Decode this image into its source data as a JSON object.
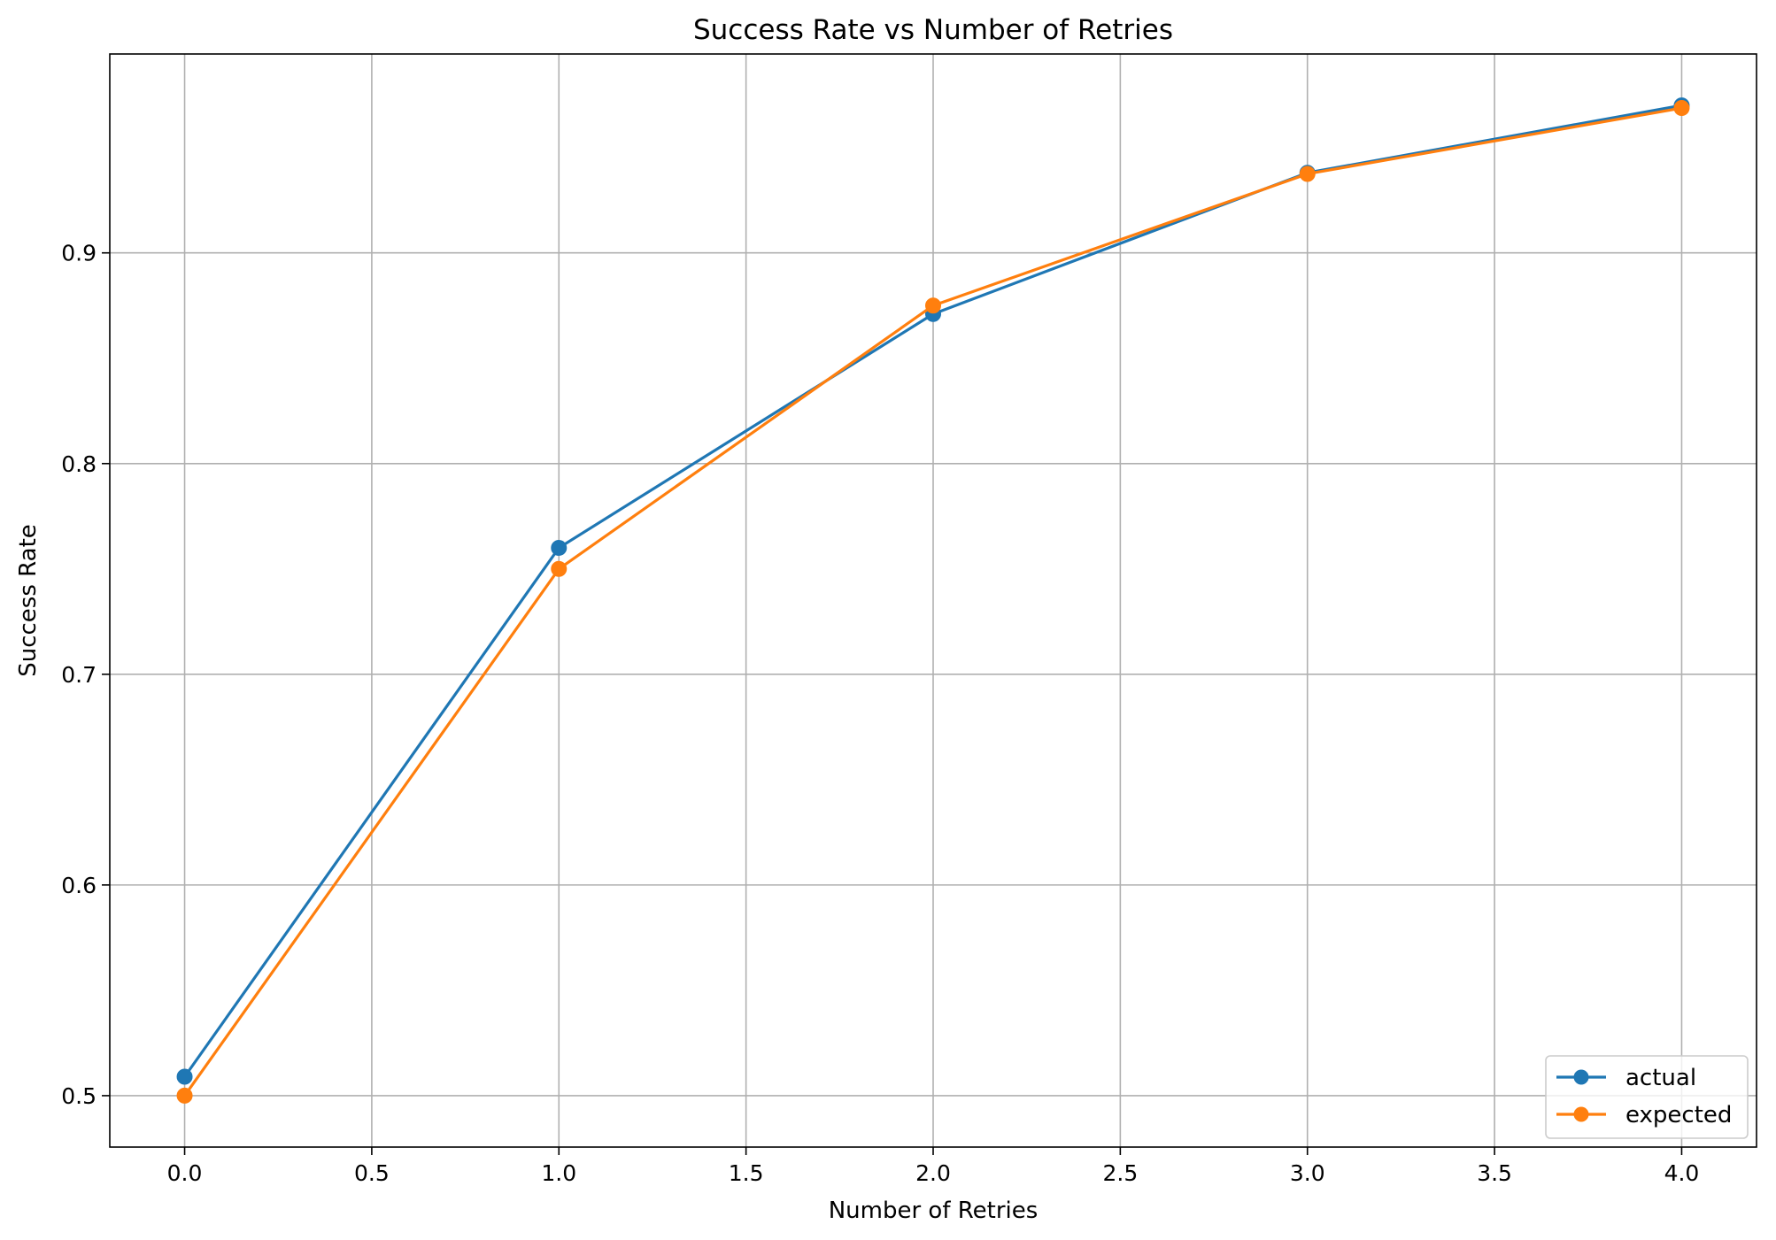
{
  "chart_data": {
    "type": "line",
    "title": "Success Rate vs Number of Retries",
    "xlabel": "Number of Retries",
    "ylabel": "Success Rate",
    "xlim": [
      -0.2,
      4.2
    ],
    "ylim": [
      0.4756,
      0.9944
    ],
    "xticks": [
      0.0,
      0.5,
      1.0,
      1.5,
      2.0,
      2.5,
      3.0,
      3.5,
      4.0
    ],
    "xtick_labels": [
      "0.0",
      "0.5",
      "1.0",
      "1.5",
      "2.0",
      "2.5",
      "3.0",
      "3.5",
      "4.0"
    ],
    "yticks": [
      0.5,
      0.6,
      0.7,
      0.8,
      0.9
    ],
    "ytick_labels": [
      "0.5",
      "0.6",
      "0.7",
      "0.8",
      "0.9"
    ],
    "grid": true,
    "legend_position": "lower-right",
    "x": [
      0,
      1,
      2,
      3,
      4
    ],
    "series": [
      {
        "name": "actual",
        "color": "#1f77b4",
        "marker": "circle",
        "values": [
          0.509,
          0.76,
          0.871,
          0.938,
          0.97
        ]
      },
      {
        "name": "expected",
        "color": "#ff7f0e",
        "marker": "circle",
        "values": [
          0.5,
          0.75,
          0.875,
          0.9375,
          0.96875
        ]
      }
    ]
  }
}
